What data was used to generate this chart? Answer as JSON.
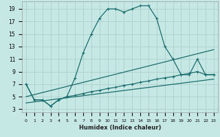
{
  "xlabel": "Humidex (Indice chaleur)",
  "background_color": "#c5e8e5",
  "grid_color": "#aacfcc",
  "line_color": "#1a6b6b",
  "xlim": [
    -0.5,
    23.5
  ],
  "ylim": [
    2.5,
    20.2
  ],
  "yticks": [
    3,
    5,
    7,
    9,
    11,
    13,
    15,
    17,
    19
  ],
  "xticks": [
    0,
    1,
    2,
    3,
    4,
    5,
    6,
    7,
    8,
    9,
    10,
    11,
    12,
    13,
    14,
    15,
    16,
    17,
    18,
    19,
    20,
    21,
    22,
    23
  ],
  "series_main": {
    "x": [
      0,
      1,
      2,
      3,
      4,
      5,
      6,
      7,
      8,
      9,
      10,
      11,
      12,
      13,
      14,
      15,
      16,
      17,
      18,
      19,
      20,
      21,
      22,
      23
    ],
    "y": [
      7.0,
      4.5,
      4.5,
      3.5,
      4.5,
      5.0,
      8.0,
      12.0,
      15.0,
      17.5,
      19.0,
      19.0,
      18.5,
      19.0,
      19.5,
      19.5,
      17.5,
      13.0,
      11.0,
      8.5,
      8.5,
      11.0,
      8.5,
      8.5
    ]
  },
  "series_low": {
    "x": [
      0,
      1,
      2,
      3,
      4,
      5,
      6,
      7,
      8,
      9,
      10,
      11,
      12,
      13,
      14,
      15,
      16,
      17,
      18,
      19,
      20,
      21,
      22,
      23
    ],
    "y": [
      7.0,
      4.5,
      4.5,
      3.5,
      4.5,
      5.0,
      5.2,
      5.5,
      5.8,
      6.0,
      6.3,
      6.5,
      6.8,
      7.0,
      7.3,
      7.5,
      7.8,
      8.0,
      8.2,
      8.5,
      8.7,
      9.0,
      8.5,
      8.5
    ]
  },
  "line1": {
    "x": [
      0,
      23
    ],
    "y": [
      5.0,
      12.5
    ]
  },
  "line2": {
    "x": [
      0,
      23
    ],
    "y": [
      4.0,
      7.8
    ]
  }
}
